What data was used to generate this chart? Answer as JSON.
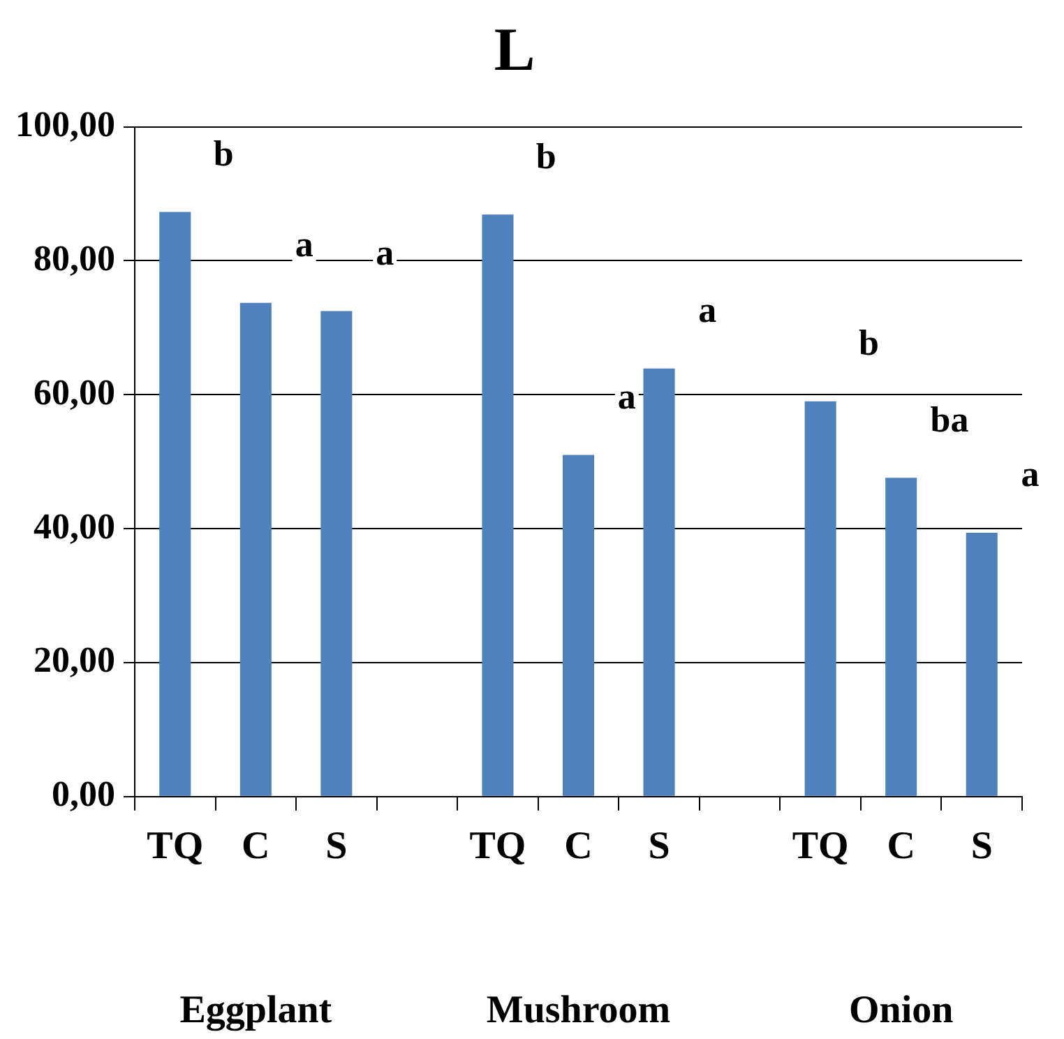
{
  "chart_data": {
    "type": "bar",
    "title": "L",
    "categories": [
      "TQ",
      "C",
      "S",
      null,
      "TQ",
      "C",
      "S",
      null,
      "TQ",
      "C",
      "S"
    ],
    "values": [
      87.3,
      73.7,
      72.5,
      null,
      86.9,
      51.0,
      63.9,
      null,
      59.0,
      47.6,
      39.4
    ],
    "color": "#4f81bd",
    "ylim": [
      0,
      100
    ],
    "yticks": [
      {
        "value": 0,
        "label": "0,00"
      },
      {
        "value": 20,
        "label": "20,00"
      },
      {
        "value": 40,
        "label": "40,00"
      },
      {
        "value": 60,
        "label": "60,00"
      },
      {
        "value": 80,
        "label": "80,00"
      },
      {
        "value": 100,
        "label": "100,00"
      }
    ],
    "grid": "y",
    "legend": false,
    "annotations": [
      "b",
      "a",
      "a",
      "b",
      "a",
      "a",
      "b",
      "ba",
      "a",
      "Eggplant",
      "Mushroom",
      "Onion"
    ]
  }
}
